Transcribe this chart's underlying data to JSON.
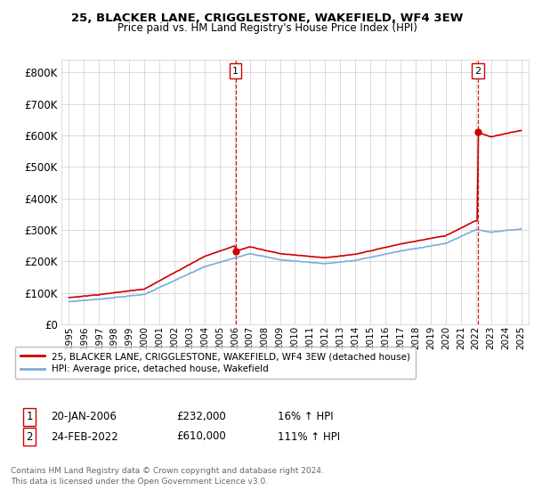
{
  "title": "25, BLACKER LANE, CRIGGLESTONE, WAKEFIELD, WF4 3EW",
  "subtitle": "Price paid vs. HM Land Registry's House Price Index (HPI)",
  "legend_line1": "25, BLACKER LANE, CRIGGLESTONE, WAKEFIELD, WF4 3EW (detached house)",
  "legend_line2": "HPI: Average price, detached house, Wakefield",
  "ann1_number": "1",
  "ann1_date": "20-JAN-2006",
  "ann1_price": "£232,000",
  "ann1_hpi": "16% ↑ HPI",
  "ann2_number": "2",
  "ann2_date": "24-FEB-2022",
  "ann2_price": "£610,000",
  "ann2_hpi": "111% ↑ HPI",
  "sale1_x": 2006.05,
  "sale1_y": 232000,
  "sale2_x": 2022.12,
  "sale2_y": 610000,
  "yticks": [
    0,
    100000,
    200000,
    300000,
    400000,
    500000,
    600000,
    700000,
    800000
  ],
  "ylim": [
    0,
    840000
  ],
  "xlim_start": 1994.5,
  "xlim_end": 2025.5,
  "xticks": [
    1995,
    1996,
    1997,
    1998,
    1999,
    2000,
    2001,
    2002,
    2003,
    2004,
    2005,
    2006,
    2007,
    2008,
    2009,
    2010,
    2011,
    2012,
    2013,
    2014,
    2015,
    2016,
    2017,
    2018,
    2019,
    2020,
    2021,
    2022,
    2023,
    2024,
    2025
  ],
  "background_color": "#ffffff",
  "grid_color": "#cccccc",
  "red_line_color": "#cc0000",
  "blue_line_color": "#7aaddc",
  "vline_color": "#cc0000",
  "footer1": "Contains HM Land Registry data © Crown copyright and database right 2024.",
  "footer2": "This data is licensed under the Open Government Licence v3.0."
}
